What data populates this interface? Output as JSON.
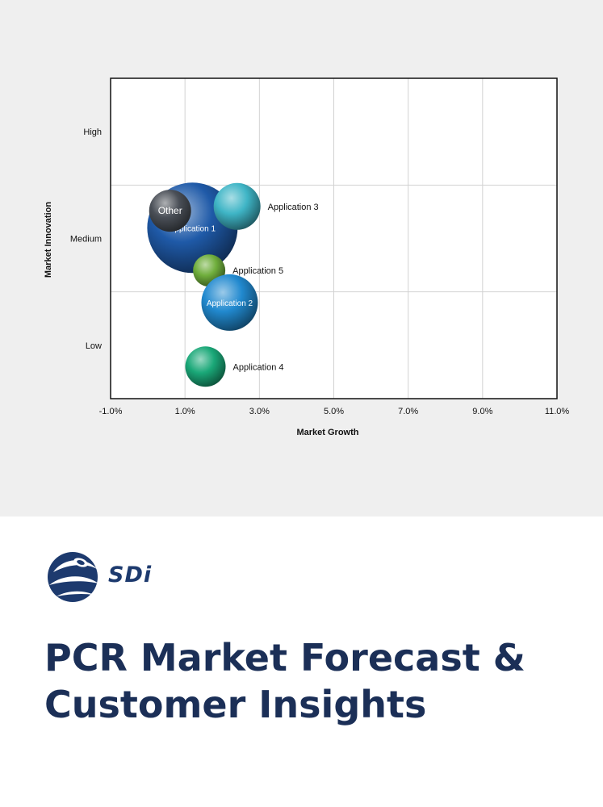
{
  "report": {
    "brand": "SDi",
    "title": "PCR Market Forecast & Customer Insights"
  },
  "colors": {
    "chart_background": "#efefef",
    "grid": "#d2d2d2",
    "title_text": "#1b2f57",
    "brand_blue": "#1d3a6e"
  },
  "chart_data": {
    "type": "scatter",
    "title": "",
    "xlabel": "Market Growth",
    "ylabel": "Market Innovation",
    "x_ticks": [
      "-1.0%",
      "1.0%",
      "3.0%",
      "5.0%",
      "7.0%",
      "9.0%",
      "11.0%"
    ],
    "xlim": [
      -1.0,
      11.0
    ],
    "y_ticks": [
      "Low",
      "Medium",
      "High"
    ],
    "ylim": [
      0,
      3
    ],
    "grid": true,
    "legend": "none",
    "series": [
      {
        "name": "Application 1",
        "x": 1.2,
        "y": 1.6,
        "size": 56,
        "color": "#1f5aa8",
        "label_inside": true
      },
      {
        "name": "Other",
        "x": 0.6,
        "y": 1.76,
        "size": 26,
        "color": "#4a4f57",
        "label_inside": true
      },
      {
        "name": "Application 3",
        "x": 2.4,
        "y": 1.8,
        "size": 29,
        "color": "#3fb5c6",
        "label_inside": false
      },
      {
        "name": "Application 5",
        "x": 1.65,
        "y": 1.2,
        "size": 20,
        "color": "#6fae3c",
        "label_inside": false
      },
      {
        "name": "Application 2",
        "x": 2.2,
        "y": 0.9,
        "size": 35,
        "color": "#2189cf",
        "label_inside": true
      },
      {
        "name": "Application 4",
        "x": 1.55,
        "y": 0.3,
        "size": 25,
        "color": "#1aa878",
        "label_inside": false
      }
    ]
  }
}
